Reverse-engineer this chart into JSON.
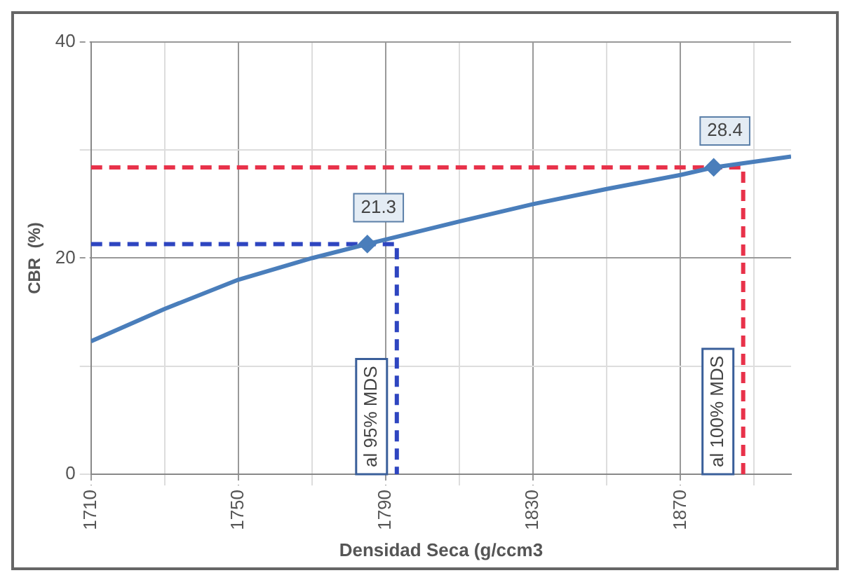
{
  "chart_data": {
    "type": "line",
    "xlabel": "Densidad Seca (g/ccm3",
    "ylabel": "CBR  (%)",
    "xlim": [
      1710,
      1900
    ],
    "ylim": [
      0,
      40
    ],
    "xticks": [
      1710,
      {
        "value": 1730,
        "label": null
      },
      1750,
      {
        "value": 1770,
        "label": null
      },
      1790,
      {
        "value": 1810,
        "label": null
      },
      1830,
      {
        "value": 1850,
        "label": null
      },
      1870,
      {
        "value": 1890,
        "label": null
      }
    ],
    "yticks": [
      0,
      {
        "value": 10,
        "label": null
      },
      20,
      {
        "value": 30,
        "label": null
      },
      40
    ],
    "grid": true,
    "series": [
      {
        "color": "#4a7ebb",
        "marker": "none",
        "x": [
          1710,
          1730,
          1750,
          1770,
          1785,
          1810,
          1830,
          1850,
          1870,
          1879,
          1900
        ],
        "values": [
          12.3,
          15.3,
          18,
          20,
          21.3,
          23.4,
          25,
          26.4,
          27.7,
          28.4,
          29.4
        ]
      },
      {
        "type": "scatter",
        "color": "#4a7ebb",
        "marker": "diamond",
        "x": [
          1785,
          1879
        ],
        "values": [
          21.3,
          28.4
        ],
        "value_labels": [
          "21.3",
          "28.4"
        ]
      },
      {
        "color": "#2e45c0",
        "marker": "none",
        "line_style": "dashed",
        "x": [
          1710,
          1793,
          1793
        ],
        "values": [
          21.3,
          21.3,
          0
        ]
      },
      {
        "color": "#e8324a",
        "marker": "none",
        "line_style": "dashed",
        "x": [
          1710,
          1887,
          1887
        ],
        "values": [
          28.4,
          28.4,
          0
        ]
      }
    ],
    "annotations": [
      "al 95% MDS",
      "al 100% MDS"
    ]
  }
}
